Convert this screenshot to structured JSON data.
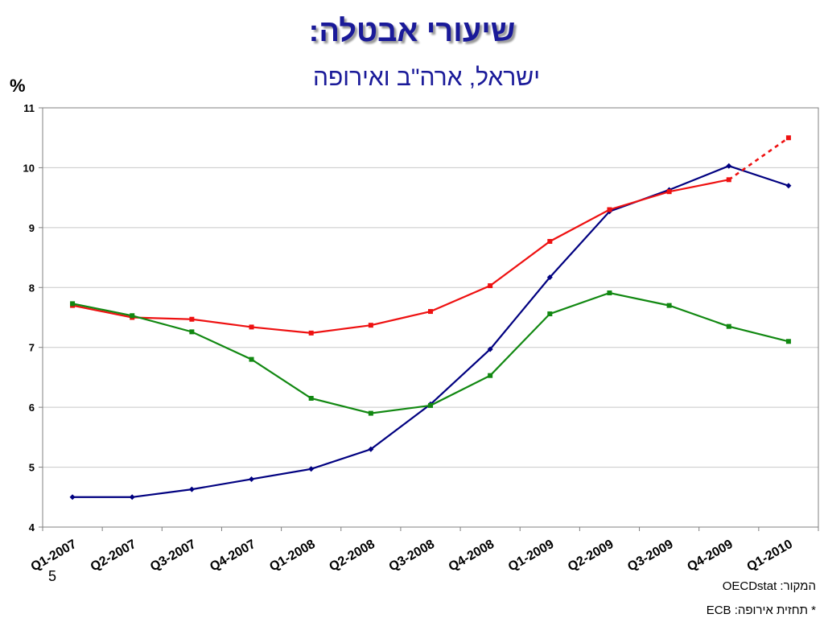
{
  "title": "שיעורי אבטלה:",
  "subtitle": "ישראל, ארה\"ב ואירופה",
  "slide_number": "5",
  "source": "המקור: OECDstat",
  "note": "* תחזית אירופה: ECB",
  "chart_data": {
    "type": "line",
    "ylabel": "%",
    "ylim": [
      4,
      11
    ],
    "yticks": [
      4,
      5,
      6,
      7,
      8,
      9,
      10,
      11
    ],
    "grid": true,
    "categories": [
      "Q1-2007",
      "Q2-2007",
      "Q3-2007",
      "Q4-2007",
      "Q1-2008",
      "Q2-2008",
      "Q3-2008",
      "Q4-2008",
      "Q1-2009",
      "Q2-2009",
      "Q3-2009",
      "Q4-2009",
      "Q1-2010"
    ],
    "series": [
      {
        "color": "#000080",
        "marker": "diamond",
        "values": [
          4.5,
          4.5,
          4.63,
          4.8,
          4.97,
          5.3,
          6.05,
          6.97,
          8.17,
          9.27,
          9.63,
          10.03,
          9.7
        ]
      },
      {
        "color": "#ee1111",
        "marker": "square",
        "values": [
          7.7,
          7.5,
          7.47,
          7.34,
          7.24,
          7.37,
          7.6,
          8.03,
          8.77,
          9.3,
          9.6,
          9.8,
          10.5
        ],
        "forecast_from_index": 11
      },
      {
        "color": "#118811",
        "marker": "square",
        "values": [
          7.73,
          7.53,
          7.26,
          6.8,
          6.15,
          5.9,
          6.03,
          6.53,
          7.56,
          7.91,
          7.7,
          7.35,
          7.1
        ]
      }
    ]
  }
}
